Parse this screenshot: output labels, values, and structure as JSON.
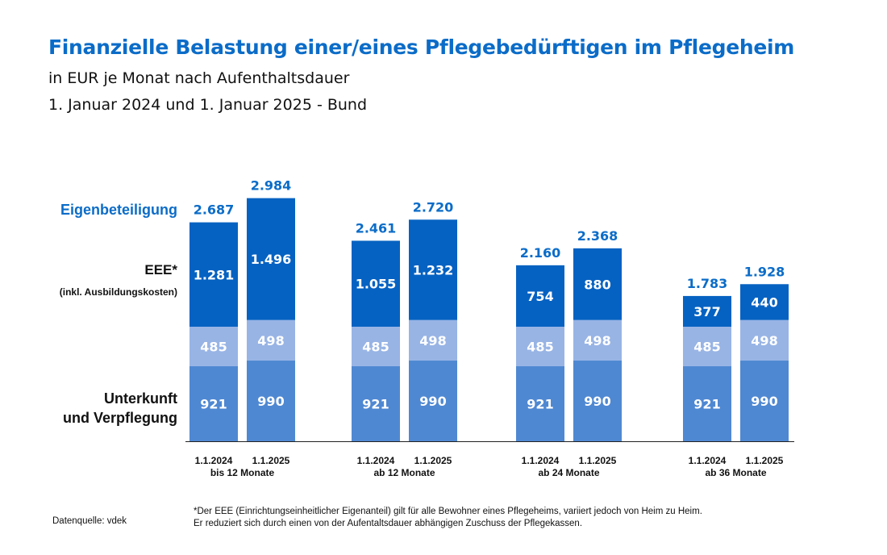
{
  "chart_data": {
    "type": "stacked-bar",
    "title": "Finanzielle Belastung einer/eines Pflegebedürftigen im Pflegeheim",
    "subtitle": "in EUR je Monat nach Aufenthaltsdauer",
    "subtitle2": "1. Januar 2024 und 1. Januar 2025 - Bund",
    "groups": [
      "bis 12 Monate",
      "ab 12 Monate",
      "ab 24 Monate",
      "ab 36 Monate"
    ],
    "categories": [
      "1.1.2024",
      "1.1.2025"
    ],
    "segment_labels": {
      "total": "Eigenbeteiligung",
      "eee": "EEE*",
      "eee_note": "(inkl. Ausbildungskosten)",
      "uv1": "Unterkunft",
      "uv2": "und Verpflegung"
    },
    "series": [
      {
        "key": "uv",
        "values": [
          [
            921,
            990
          ],
          [
            921,
            990
          ],
          [
            921,
            990
          ],
          [
            921,
            990
          ]
        ],
        "color": "#4f88d2"
      },
      {
        "key": "mid",
        "values": [
          [
            485,
            498
          ],
          [
            485,
            498
          ],
          [
            485,
            498
          ],
          [
            485,
            498
          ]
        ],
        "color": "#98b4e5"
      },
      {
        "key": "eee",
        "values": [
          [
            1281,
            1496
          ],
          [
            1055,
            1232
          ],
          [
            754,
            880
          ],
          [
            377,
            440
          ]
        ],
        "color": "#0662c2"
      }
    ],
    "totals": [
      [
        2687,
        2984
      ],
      [
        2461,
        2720
      ],
      [
        2160,
        2368
      ],
      [
        1783,
        1928
      ]
    ],
    "value_format": "de",
    "colors": {
      "title": "#0b6cc8",
      "total_label": "#0b6cc8"
    }
  },
  "footer": {
    "source": "Datenquelle: vdek",
    "note1": "*Der EEE (Einrichtungseinheitlicher Eigenanteil) gilt für alle Bewohner eines Pflegeheims, variiert jedoch von Heim zu Heim.",
    "note2": "Er reduziert sich durch einen von der Aufentaltsdauer abhängigen Zuschuss der Pflegekassen."
  }
}
